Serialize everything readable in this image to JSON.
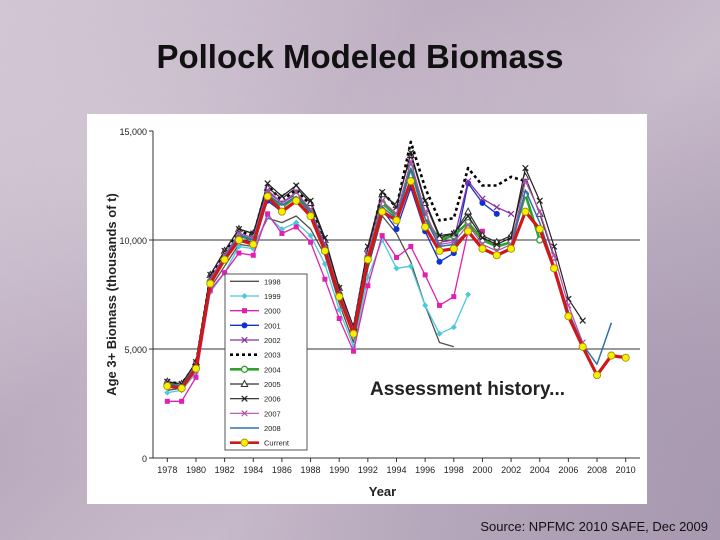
{
  "slide": {
    "title": "Pollock Modeled Biomass",
    "source": "Source: NPFMC 2010 SAFE, Dec 2009"
  },
  "chart_data": {
    "type": "line",
    "title": "",
    "xlabel": "Year",
    "ylabel": "Age 3+ Biomass (thousands of t)",
    "xlim": [
      1977,
      2011
    ],
    "ylim": [
      0,
      15000
    ],
    "xticks": [
      1978,
      1980,
      1982,
      1984,
      1986,
      1988,
      1990,
      1992,
      1994,
      1996,
      1998,
      2000,
      2002,
      2004,
      2006,
      2008,
      2010
    ],
    "yticks": [
      0,
      5000,
      10000,
      15000
    ],
    "ytick_labels": [
      "0",
      "5,000",
      "10,000",
      "15,000"
    ],
    "gridlines": [
      5000,
      10000
    ],
    "annotation": "Assessment history...",
    "legend_position": "center-left",
    "series": [
      {
        "name": "1998",
        "color": "#505050",
        "width": 1.3,
        "marker": "none",
        "x": [
          1978,
          1979,
          1980,
          1981,
          1982,
          1983,
          1984,
          1985,
          1986,
          1987,
          1988,
          1989,
          1990,
          1991,
          1992,
          1993,
          1994,
          1995,
          1996,
          1997,
          1998
        ],
        "y": [
          3100,
          3200,
          4000,
          7800,
          8800,
          9800,
          9700,
          11000,
          10800,
          11100,
          10500,
          9300,
          7100,
          5300,
          8700,
          11100,
          10300,
          9000,
          7000,
          5300,
          5100
        ]
      },
      {
        "name": "1999",
        "color": "#4cc8dc",
        "width": 1.3,
        "marker": "diamond",
        "x": [
          1978,
          1979,
          1980,
          1981,
          1982,
          1983,
          1984,
          1985,
          1986,
          1987,
          1988,
          1989,
          1990,
          1991,
          1992,
          1993,
          1994,
          1995,
          1996,
          1997,
          1998,
          1999
        ],
        "y": [
          3000,
          3100,
          3900,
          7600,
          8500,
          9700,
          9600,
          11100,
          10500,
          10800,
          10200,
          8900,
          6800,
          5100,
          8300,
          10000,
          8700,
          8800,
          7000,
          5700,
          6000,
          7500
        ]
      },
      {
        "name": "2000",
        "color": "#e020b0",
        "width": 1.3,
        "marker": "square",
        "x": [
          1978,
          1979,
          1980,
          1981,
          1982,
          1983,
          1984,
          1985,
          1986,
          1987,
          1988,
          1989,
          1990,
          1991,
          1992,
          1993,
          1994,
          1995,
          1996,
          1997,
          1998,
          1999,
          2000
        ],
        "y": [
          2600,
          2600,
          3700,
          7700,
          8500,
          9400,
          9300,
          11200,
          10300,
          10600,
          9900,
          8200,
          6400,
          4900,
          7900,
          10200,
          9200,
          9700,
          8400,
          7000,
          7400,
          10400,
          10400
        ]
      },
      {
        "name": "2001",
        "color": "#1030d0",
        "width": 1.3,
        "marker": "circle",
        "x": [
          1978,
          1979,
          1980,
          1981,
          1982,
          1983,
          1984,
          1985,
          1986,
          1987,
          1988,
          1989,
          1990,
          1991,
          1992,
          1993,
          1994,
          1995,
          1996,
          1997,
          1998,
          1999,
          2000,
          2001
        ],
        "y": [
          3400,
          3200,
          4200,
          8000,
          9100,
          10000,
          9900,
          11800,
          11300,
          11800,
          11200,
          9600,
          7400,
          5700,
          9100,
          11400,
          10500,
          12400,
          10400,
          9000,
          9400,
          12600,
          11700,
          11200
        ]
      },
      {
        "name": "2002",
        "color": "#8830a0",
        "width": 1.3,
        "marker": "x",
        "x": [
          1978,
          1979,
          1980,
          1981,
          1982,
          1983,
          1984,
          1985,
          1986,
          1987,
          1988,
          1989,
          1990,
          1991,
          1992,
          1993,
          1994,
          1995,
          1996,
          1997,
          1998,
          1999,
          2000,
          2001,
          2002
        ],
        "y": [
          3500,
          3300,
          4300,
          8200,
          9300,
          10300,
          10100,
          12200,
          11700,
          12100,
          11400,
          9800,
          7600,
          5800,
          9300,
          11800,
          11100,
          13500,
          11200,
          9900,
          10000,
          12700,
          11900,
          11500,
          11200
        ]
      },
      {
        "name": "2003",
        "color": "#000000",
        "width": 2.6,
        "marker": "none",
        "dash": "3,3",
        "x": [
          1978,
          1979,
          1980,
          1981,
          1982,
          1983,
          1984,
          1985,
          1986,
          1987,
          1988,
          1989,
          1990,
          1991,
          1992,
          1993,
          1994,
          1995,
          1996,
          1997,
          1998,
          1999,
          2000,
          2001,
          2002,
          2003
        ],
        "y": [
          3500,
          3400,
          4300,
          8300,
          9400,
          10400,
          10200,
          12500,
          11800,
          12300,
          11600,
          9900,
          7700,
          5900,
          9500,
          12200,
          11500,
          14500,
          12400,
          10900,
          11000,
          13300,
          12500,
          12500,
          12900,
          12700
        ]
      },
      {
        "name": "2004",
        "color": "#30a030",
        "width": 2.6,
        "marker": "circle-open",
        "x": [
          1978,
          1979,
          1980,
          1981,
          1982,
          1983,
          1984,
          1985,
          1986,
          1987,
          1988,
          1989,
          1990,
          1991,
          1992,
          1993,
          1994,
          1995,
          1996,
          1997,
          1998,
          1999,
          2000,
          2001,
          2002,
          2003,
          2004
        ],
        "y": [
          3400,
          3300,
          4200,
          8100,
          9200,
          10200,
          10000,
          12000,
          11500,
          12000,
          11300,
          9700,
          7500,
          5800,
          9200,
          11700,
          11100,
          13300,
          11000,
          10000,
          10200,
          10800,
          10000,
          9700,
          9900,
          12100,
          10000
        ]
      },
      {
        "name": "2005",
        "color": "#303030",
        "width": 1.2,
        "marker": "triangle",
        "x": [
          1978,
          1979,
          1980,
          1981,
          1982,
          1983,
          1984,
          1985,
          1986,
          1987,
          1988,
          1989,
          1990,
          1991,
          1992,
          1993,
          1994,
          1995,
          1996,
          1997,
          1998,
          1999,
          2000,
          2001,
          2002,
          2003,
          2004,
          2005
        ],
        "y": [
          3500,
          3400,
          4400,
          8400,
          9500,
          10500,
          10300,
          12400,
          11900,
          12400,
          11700,
          10000,
          7800,
          6000,
          9600,
          12100,
          11600,
          13900,
          11700,
          10100,
          10300,
          11300,
          10200,
          9900,
          10200,
          12900,
          11200,
          9200
        ]
      },
      {
        "name": "2006",
        "color": "#202020",
        "width": 1.2,
        "marker": "x",
        "x": [
          1978,
          1979,
          1980,
          1981,
          1982,
          1983,
          1984,
          1985,
          1986,
          1987,
          1988,
          1989,
          1990,
          1991,
          1992,
          1993,
          1994,
          1995,
          1996,
          1997,
          1998,
          1999,
          2000,
          2001,
          2002,
          2003,
          2004,
          2005,
          2006,
          2007
        ],
        "y": [
          3500,
          3400,
          4400,
          8400,
          9500,
          10500,
          10300,
          12600,
          12000,
          12500,
          11800,
          10100,
          7800,
          6000,
          9700,
          12200,
          11500,
          14000,
          11800,
          10200,
          10300,
          11100,
          10100,
          9800,
          10100,
          13300,
          11800,
          9700,
          7300,
          6300
        ]
      },
      {
        "name": "2007",
        "color": "#b050b0",
        "width": 1.2,
        "marker": "x",
        "x": [
          1978,
          1979,
          1980,
          1981,
          1982,
          1983,
          1984,
          1985,
          1986,
          1987,
          1988,
          1989,
          1990,
          1991,
          1992,
          1993,
          1994,
          1995,
          1996,
          1997,
          1998,
          1999,
          2000,
          2001,
          2002,
          2003,
          2004,
          2005,
          2006,
          2007
        ],
        "y": [
          3400,
          3300,
          4300,
          8200,
          9300,
          10300,
          10100,
          12300,
          11700,
          12200,
          11400,
          9800,
          7600,
          5900,
          9400,
          11800,
          11200,
          13600,
          11300,
          9800,
          9900,
          10700,
          9800,
          9500,
          9800,
          12700,
          11300,
          9300,
          7000,
          5300
        ]
      },
      {
        "name": "2008",
        "color": "#3070b0",
        "width": 1.5,
        "marker": "none",
        "x": [
          1978,
          1979,
          1980,
          1981,
          1982,
          1983,
          1984,
          1985,
          1986,
          1987,
          1988,
          1989,
          1990,
          1991,
          1992,
          1993,
          1994,
          1995,
          1996,
          1997,
          1998,
          1999,
          2000,
          2001,
          2002,
          2003,
          2004,
          2005,
          2006,
          2007,
          2008,
          2009
        ],
        "y": [
          3400,
          3300,
          4200,
          8100,
          9200,
          10200,
          10000,
          12100,
          11600,
          12000,
          11300,
          9700,
          7500,
          5800,
          9200,
          11500,
          11000,
          13300,
          11000,
          9700,
          9800,
          10400,
          9600,
          9300,
          9600,
          12300,
          10800,
          8800,
          6700,
          5200,
          4300,
          6200
        ]
      },
      {
        "name": "Current",
        "color": "#d01818",
        "width": 3.2,
        "marker": "circle-yellow",
        "x": [
          1978,
          1979,
          1980,
          1981,
          1982,
          1983,
          1984,
          1985,
          1986,
          1987,
          1988,
          1989,
          1990,
          1991,
          1992,
          1993,
          1994,
          1995,
          1996,
          1997,
          1998,
          1999,
          2000,
          2001,
          2002,
          2003,
          2004,
          2005,
          2006,
          2007,
          2008,
          2009,
          2010
        ],
        "y": [
          3300,
          3200,
          4100,
          8000,
          9100,
          10000,
          9800,
          12000,
          11300,
          11800,
          11100,
          9500,
          7400,
          5700,
          9100,
          11300,
          10900,
          12700,
          10600,
          9500,
          9600,
          10400,
          9600,
          9300,
          9600,
          11300,
          10500,
          8700,
          6500,
          5100,
          3800,
          4700,
          4600
        ]
      }
    ]
  }
}
